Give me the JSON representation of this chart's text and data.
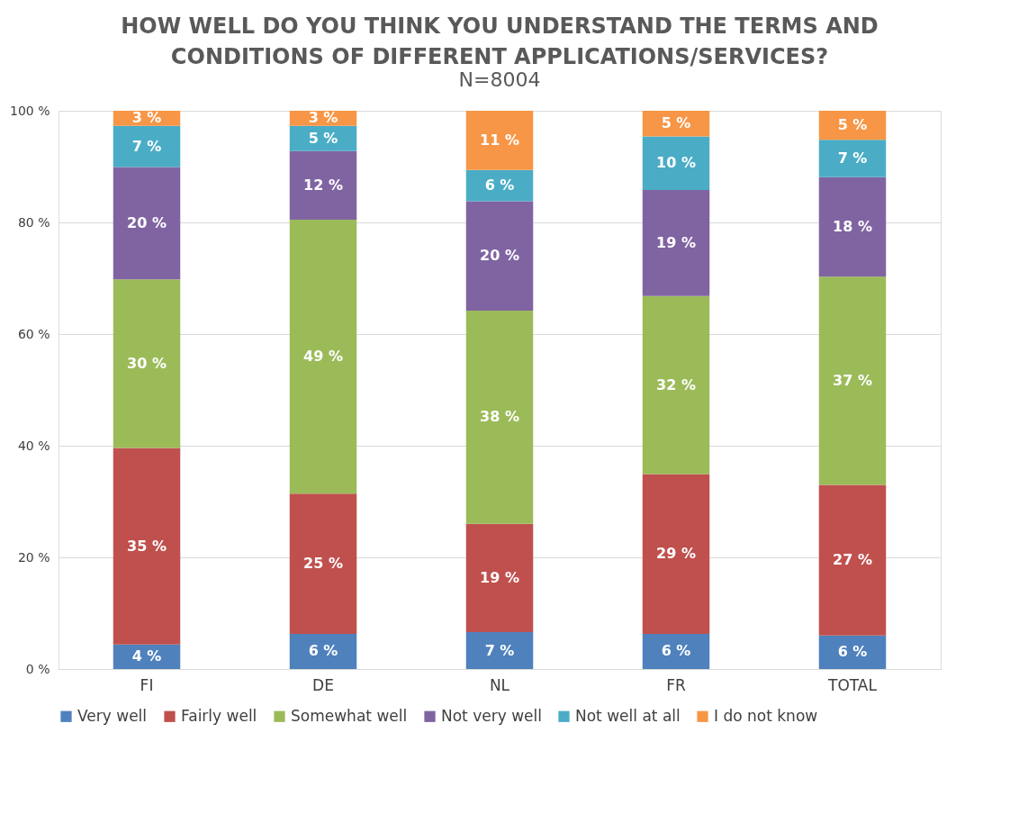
{
  "chart_data": {
    "type": "bar",
    "title": "HOW WELL DO YOU THINK YOU UNDERSTAND THE TERMS AND CONDITIONS OF DIFFERENT APPLICATIONS/SERVICES?",
    "subtitle": "N=8004",
    "categories": [
      "FI",
      "DE",
      "NL",
      "FR",
      "TOTAL"
    ],
    "stacked": true,
    "series": [
      {
        "name": "Very well",
        "color": "#4f81bd",
        "values": [
          4.4,
          6.3,
          6.6,
          6.3,
          6.0
        ],
        "value_labels": [
          "4 %",
          "6 %",
          "7 %",
          "6 %",
          "6 %"
        ]
      },
      {
        "name": "Fairly well",
        "color": "#c0504d",
        "values": [
          35.2,
          25.1,
          19.4,
          28.6,
          27.0
        ],
        "value_labels": [
          "35 %",
          "25 %",
          "19 %",
          "29 %",
          "27 %"
        ]
      },
      {
        "name": "Somewhat well",
        "color": "#9bbb59",
        "values": [
          30.2,
          49.1,
          38.2,
          31.9,
          37.3
        ],
        "value_labels": [
          "30 %",
          "49 %",
          "38 %",
          "32 %",
          "37 %"
        ]
      },
      {
        "name": "Not very well",
        "color": "#8064a2",
        "values": [
          20.1,
          12.3,
          19.6,
          19.0,
          17.8
        ],
        "value_labels": [
          "20 %",
          "12 %",
          "20 %",
          "19 %",
          "18 %"
        ]
      },
      {
        "name": "Not well at all",
        "color": "#4bacc6",
        "values": [
          7.4,
          4.5,
          5.6,
          9.6,
          6.7
        ],
        "value_labels": [
          "7 %",
          "5 %",
          "6 %",
          "10 %",
          "7 %"
        ]
      },
      {
        "name": "I do not know",
        "color": "#f79646",
        "values": [
          2.7,
          2.7,
          10.6,
          4.6,
          5.2
        ],
        "value_labels": [
          "3 %",
          "3 %",
          "11 %",
          "5 %",
          "5 %"
        ]
      }
    ],
    "ylim": [
      0,
      100
    ],
    "yticks": [
      {
        "value": 0,
        "label": "0 %"
      },
      {
        "value": 20,
        "label": "20 %"
      },
      {
        "value": 40,
        "label": "40 %"
      },
      {
        "value": 60,
        "label": "60 %"
      },
      {
        "value": 80,
        "label": "80 %"
      },
      {
        "value": 100,
        "label": "100 %"
      }
    ],
    "grid": "y",
    "legend": "bottom"
  }
}
